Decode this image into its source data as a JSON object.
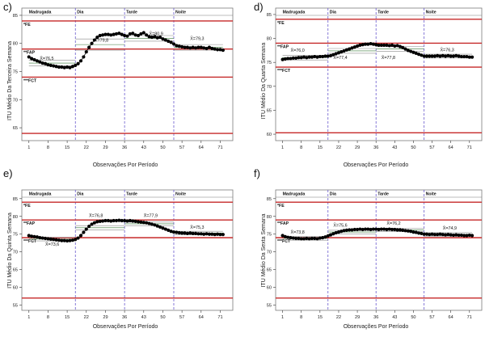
{
  "chart_data": [
    {
      "type": "line",
      "panel_label": "c)",
      "ylabel": "ITU Médio Da Terceira Semana",
      "xlabel": "Observações Por Período",
      "ylim": [
        63,
        86
      ],
      "yticks": [
        65,
        70,
        75,
        80,
        85
      ],
      "xticks": [
        1,
        8,
        15,
        22,
        29,
        36,
        43,
        50,
        57,
        64,
        71
      ],
      "xlim": [
        -1,
        75
      ],
      "periods": [
        {
          "name": "Madrugada",
          "start": 1,
          "end": 18
        },
        {
          "name": "Dia",
          "start": 18,
          "end": 36
        },
        {
          "name": "Tarde",
          "start": 36,
          "end": 54
        },
        {
          "name": "Noite",
          "start": 54,
          "end": 72
        }
      ],
      "limits": [
        {
          "label": "*FE",
          "value": 84
        },
        {
          "label": "**FAP",
          "value": 79
        },
        {
          "label": "***FCT",
          "value": 74
        },
        {
          "label": "",
          "value": 64
        }
      ],
      "mean_labels": [
        {
          "text": "X̄=76,5",
          "x": 5,
          "y": 77.1
        },
        {
          "text": "X̄=79,8",
          "x": 25,
          "y": 80.3
        },
        {
          "text": "X̄=80,9",
          "x": 45,
          "y": 81.5
        },
        {
          "text": "X̄=79,3",
          "x": 60,
          "y": 80.6
        }
      ],
      "bands": [
        {
          "start": 1,
          "end": 18,
          "lines": [
            76.0,
            76.5,
            77.0
          ]
        },
        {
          "start": 18,
          "end": 36,
          "lines": [
            78.8,
            79.8,
            80.8
          ]
        },
        {
          "start": 36,
          "end": 54,
          "lines": [
            80.4,
            80.9,
            81.4
          ]
        },
        {
          "start": 54,
          "end": 72,
          "lines": [
            78.8,
            79.3,
            79.8
          ]
        }
      ],
      "x": [
        1,
        2,
        3,
        4,
        5,
        6,
        7,
        8,
        9,
        10,
        11,
        12,
        13,
        14,
        15,
        16,
        17,
        18,
        19,
        20,
        21,
        22,
        23,
        24,
        25,
        26,
        27,
        28,
        29,
        30,
        31,
        32,
        33,
        34,
        35,
        36,
        37,
        38,
        39,
        40,
        41,
        42,
        43,
        44,
        45,
        46,
        47,
        48,
        49,
        50,
        51,
        52,
        53,
        54,
        55,
        56,
        57,
        58,
        59,
        60,
        61,
        62,
        63,
        64,
        65,
        66,
        67,
        68,
        69,
        70,
        71,
        72
      ],
      "values": [
        77.6,
        77.3,
        77.1,
        76.9,
        76.7,
        76.5,
        76.4,
        76.2,
        76.1,
        76.0,
        75.9,
        75.8,
        75.8,
        75.7,
        75.8,
        75.7,
        75.9,
        76.1,
        76.4,
        76.9,
        77.6,
        78.5,
        79.3,
        80.0,
        80.6,
        81.1,
        81.4,
        81.5,
        81.6,
        81.6,
        81.5,
        81.6,
        81.7,
        81.8,
        81.6,
        81.4,
        81.3,
        81.7,
        81.8,
        81.5,
        81.4,
        81.7,
        81.9,
        81.5,
        81.2,
        81.1,
        81.2,
        81.0,
        81.1,
        80.8,
        80.6,
        80.4,
        80.2,
        79.9,
        79.6,
        79.5,
        79.4,
        79.3,
        79.3,
        79.2,
        79.3,
        79.2,
        79.3,
        79.3,
        79.2,
        79.1,
        79.3,
        79.1,
        79.0,
        78.9,
        78.9,
        78.8
      ]
    },
    {
      "type": "line",
      "panel_label": "d)",
      "ylabel": "ITU Médio Da Quarta Semana",
      "xlabel": "Observações Por Período",
      "ylim": [
        59,
        86
      ],
      "yticks": [
        60,
        65,
        70,
        75,
        80,
        85
      ],
      "xticks": [
        1,
        8,
        15,
        22,
        29,
        36,
        43,
        50,
        57,
        64,
        71
      ],
      "xlim": [
        -1,
        75
      ],
      "periods": [
        {
          "name": "Madrugada",
          "start": 1,
          "end": 18
        },
        {
          "name": "Dia",
          "start": 18,
          "end": 36
        },
        {
          "name": "Tarde",
          "start": 36,
          "end": 54
        },
        {
          "name": "Noite",
          "start": 54,
          "end": 72
        }
      ],
      "limits": [
        {
          "label": "*FE",
          "value": 84
        },
        {
          "label": "**FAP",
          "value": 79
        },
        {
          "label": "***FCT",
          "value": 74
        },
        {
          "label": "",
          "value": 60.3
        }
      ],
      "mean_labels": [
        {
          "text": "X̄=76,0",
          "x": 4,
          "y": 77.2
        },
        {
          "text": "X̄=77,4",
          "x": 20,
          "y": 75.7
        },
        {
          "text": "X̄=77,8",
          "x": 38,
          "y": 75.7
        },
        {
          "text": "X̄=76,3",
          "x": 60,
          "y": 77.3
        }
      ],
      "bands": [
        {
          "start": 1,
          "end": 18,
          "lines": [
            75.5,
            76.0,
            76.5
          ]
        },
        {
          "start": 18,
          "end": 36,
          "lines": [
            76.9,
            77.4,
            77.9
          ]
        },
        {
          "start": 36,
          "end": 54,
          "lines": [
            77.3,
            77.8,
            78.3
          ]
        },
        {
          "start": 54,
          "end": 72,
          "lines": [
            75.9,
            76.3,
            76.7
          ]
        }
      ],
      "x": [
        1,
        2,
        3,
        4,
        5,
        6,
        7,
        8,
        9,
        10,
        11,
        12,
        13,
        14,
        15,
        16,
        17,
        18,
        19,
        20,
        21,
        22,
        23,
        24,
        25,
        26,
        27,
        28,
        29,
        30,
        31,
        32,
        33,
        34,
        35,
        36,
        37,
        38,
        39,
        40,
        41,
        42,
        43,
        44,
        45,
        46,
        47,
        48,
        49,
        50,
        51,
        52,
        53,
        54,
        55,
        56,
        57,
        58,
        59,
        60,
        61,
        62,
        63,
        64,
        65,
        66,
        67,
        68,
        69,
        70,
        71,
        72
      ],
      "values": [
        75.6,
        75.7,
        75.8,
        75.8,
        75.9,
        75.9,
        76.0,
        76.0,
        76.1,
        76.0,
        76.1,
        76.1,
        76.2,
        76.1,
        76.2,
        76.2,
        76.3,
        76.3,
        76.4,
        76.6,
        76.8,
        77.0,
        77.2,
        77.4,
        77.6,
        77.8,
        78.0,
        78.2,
        78.4,
        78.6,
        78.7,
        78.8,
        78.8,
        78.9,
        78.8,
        78.7,
        78.6,
        78.6,
        78.6,
        78.6,
        78.5,
        78.6,
        78.4,
        78.5,
        78.3,
        78.1,
        77.8,
        77.5,
        77.3,
        77.1,
        76.9,
        76.7,
        76.5,
        76.3,
        76.3,
        76.3,
        76.3,
        76.3,
        76.4,
        76.3,
        76.4,
        76.3,
        76.4,
        76.3,
        76.3,
        76.4,
        76.3,
        76.2,
        76.2,
        76.2,
        76.1,
        76.1
      ]
    },
    {
      "type": "line",
      "panel_label": "e)",
      "ylabel": "ITU Médio Da Quinta Semana",
      "xlabel": "Observações Por Período",
      "ylim": [
        54,
        87
      ],
      "yticks": [
        55,
        60,
        65,
        70,
        75,
        80,
        85
      ],
      "xticks": [
        1,
        8,
        15,
        22,
        29,
        36,
        43,
        50,
        57,
        64,
        71
      ],
      "xlim": [
        -1,
        75
      ],
      "periods": [
        {
          "name": "Madrugada",
          "start": 1,
          "end": 18
        },
        {
          "name": "Dia",
          "start": 18,
          "end": 36
        },
        {
          "name": "Tarde",
          "start": 36,
          "end": 54
        },
        {
          "name": "Noite",
          "start": 54,
          "end": 72
        }
      ],
      "limits": [
        {
          "label": "*FE",
          "value": 84
        },
        {
          "label": "**FAP",
          "value": 79
        },
        {
          "label": "***FCT",
          "value": 74
        },
        {
          "label": "",
          "value": 57
        }
      ],
      "mean_labels": [
        {
          "text": "X̄=73,6",
          "x": 7,
          "y": 71.8
        },
        {
          "text": "X̄=76,8",
          "x": 23,
          "y": 79.8
        },
        {
          "text": "X̄=77,9",
          "x": 43,
          "y": 79.8
        },
        {
          "text": "X̄=75,3",
          "x": 60,
          "y": 76.5
        }
      ],
      "bands": [
        {
          "start": 1,
          "end": 18,
          "lines": [
            73.1,
            73.6,
            74.1
          ]
        },
        {
          "start": 18,
          "end": 36,
          "lines": [
            76.2,
            76.8,
            77.4
          ]
        },
        {
          "start": 36,
          "end": 54,
          "lines": [
            77.4,
            77.9,
            78.4
          ]
        },
        {
          "start": 54,
          "end": 72,
          "lines": [
            74.8,
            75.3,
            75.8
          ]
        }
      ],
      "x": [
        1,
        2,
        3,
        4,
        5,
        6,
        7,
        8,
        9,
        10,
        11,
        12,
        13,
        14,
        15,
        16,
        17,
        18,
        19,
        20,
        21,
        22,
        23,
        24,
        25,
        26,
        27,
        28,
        29,
        30,
        31,
        32,
        33,
        34,
        35,
        36,
        37,
        38,
        39,
        40,
        41,
        42,
        43,
        44,
        45,
        46,
        47,
        48,
        49,
        50,
        51,
        52,
        53,
        54,
        55,
        56,
        57,
        58,
        59,
        60,
        61,
        62,
        63,
        64,
        65,
        66,
        67,
        68,
        69,
        70,
        71,
        72
      ],
      "values": [
        74.6,
        74.4,
        74.3,
        74.2,
        74.0,
        73.9,
        73.8,
        73.7,
        73.6,
        73.5,
        73.4,
        73.3,
        73.2,
        73.2,
        73.1,
        73.2,
        73.3,
        73.5,
        73.9,
        74.6,
        75.5,
        76.4,
        77.2,
        77.8,
        78.2,
        78.5,
        78.6,
        78.7,
        78.8,
        78.8,
        78.7,
        78.8,
        78.8,
        78.9,
        78.8,
        78.8,
        78.7,
        78.8,
        78.7,
        78.6,
        78.5,
        78.4,
        78.3,
        78.2,
        78.0,
        77.8,
        77.6,
        77.3,
        77.0,
        76.7,
        76.4,
        76.1,
        75.8,
        75.6,
        75.5,
        75.4,
        75.3,
        75.3,
        75.2,
        75.3,
        75.2,
        75.2,
        75.1,
        75.1,
        75.0,
        75.1,
        75.0,
        75.0,
        74.9,
        75.0,
        74.9,
        74.9
      ]
    },
    {
      "type": "line",
      "panel_label": "f)",
      "ylabel": "ITU Médio Da Sexta Semana",
      "xlabel": "Observações Por Período",
      "ylim": [
        54,
        87
      ],
      "yticks": [
        55,
        60,
        65,
        70,
        75,
        80,
        85
      ],
      "xticks": [
        1,
        8,
        15,
        22,
        29,
        36,
        43,
        50,
        57,
        64,
        71
      ],
      "xlim": [
        -1,
        75
      ],
      "periods": [
        {
          "name": "Madrugada",
          "start": 1,
          "end": 18
        },
        {
          "name": "Dia",
          "start": 18,
          "end": 36
        },
        {
          "name": "Tarde",
          "start": 36,
          "end": 54
        },
        {
          "name": "Noite",
          "start": 54,
          "end": 72
        }
      ],
      "limits": [
        {
          "label": "*FE",
          "value": 84
        },
        {
          "label": "**FAP",
          "value": 79
        },
        {
          "label": "***FCT",
          "value": 74
        },
        {
          "label": "",
          "value": 57
        }
      ],
      "mean_labels": [
        {
          "text": "X̄=73,8",
          "x": 4,
          "y": 75.2
        },
        {
          "text": "X̄=75,6",
          "x": 20,
          "y": 77.1
        },
        {
          "text": "X̄=76,2",
          "x": 40,
          "y": 77.7
        },
        {
          "text": "X̄=74,9",
          "x": 61,
          "y": 76.3
        }
      ],
      "bands": [
        {
          "start": 1,
          "end": 18,
          "lines": [
            73.3,
            73.8,
            74.3
          ]
        },
        {
          "start": 18,
          "end": 36,
          "lines": [
            75.1,
            75.6,
            76.1
          ]
        },
        {
          "start": 36,
          "end": 54,
          "lines": [
            75.7,
            76.2,
            76.7
          ]
        },
        {
          "start": 54,
          "end": 72,
          "lines": [
            74.4,
            74.9,
            75.4
          ]
        }
      ],
      "x": [
        1,
        2,
        3,
        4,
        5,
        6,
        7,
        8,
        9,
        10,
        11,
        12,
        13,
        14,
        15,
        16,
        17,
        18,
        19,
        20,
        21,
        22,
        23,
        24,
        25,
        26,
        27,
        28,
        29,
        30,
        31,
        32,
        33,
        34,
        35,
        36,
        37,
        38,
        39,
        40,
        41,
        42,
        43,
        44,
        45,
        46,
        47,
        48,
        49,
        50,
        51,
        52,
        53,
        54,
        55,
        56,
        57,
        58,
        59,
        60,
        61,
        62,
        63,
        64,
        65,
        66,
        67,
        68,
        69,
        70,
        71,
        72
      ],
      "values": [
        74.6,
        74.3,
        74.1,
        74.0,
        73.9,
        73.8,
        73.8,
        73.7,
        73.7,
        73.8,
        73.7,
        73.8,
        73.8,
        73.7,
        73.9,
        74.0,
        74.2,
        74.5,
        74.8,
        75.1,
        75.4,
        75.6,
        75.8,
        76.0,
        76.1,
        76.2,
        76.2,
        76.3,
        76.3,
        76.4,
        76.3,
        76.4,
        76.4,
        76.3,
        76.4,
        76.4,
        76.3,
        76.4,
        76.4,
        76.3,
        76.4,
        76.3,
        76.3,
        76.2,
        76.2,
        76.1,
        76.0,
        75.9,
        75.8,
        75.6,
        75.5,
        75.3,
        75.2,
        75.0,
        75.0,
        74.9,
        75.0,
        74.9,
        74.9,
        75.0,
        74.9,
        74.8,
        74.9,
        74.8,
        74.7,
        74.8,
        74.7,
        74.7,
        74.6,
        74.6,
        74.7,
        74.6
      ]
    }
  ]
}
